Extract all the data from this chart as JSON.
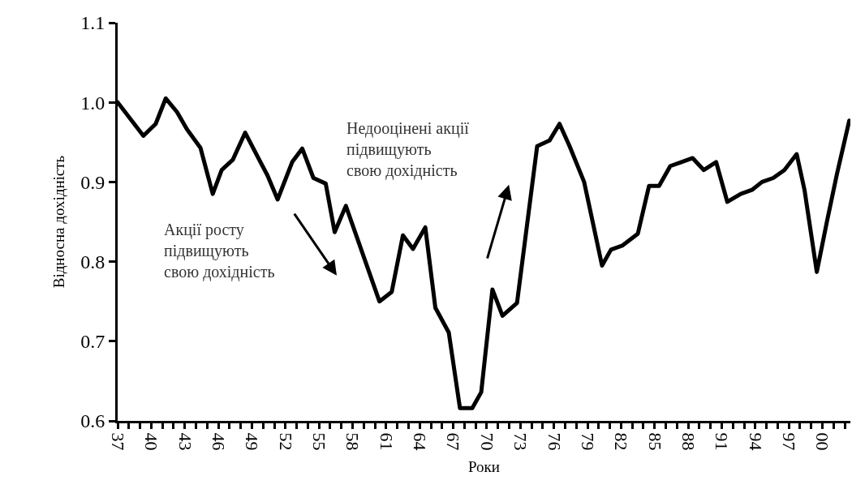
{
  "chart_data": {
    "type": "line",
    "xlabel": "Роки",
    "ylabel": "Відносна дохідність",
    "x": [
      1937.0,
      1939.3,
      1940.4,
      1941.3,
      1942.3,
      1943.2,
      1944.4,
      1945.5,
      1946.3,
      1947.3,
      1948.4,
      1949.5,
      1950.4,
      1951.3,
      1952.6,
      1953.5,
      1954.5,
      1955.6,
      1956.4,
      1957.4,
      1960.4,
      1961.5,
      1962.5,
      1963.4,
      1964.5,
      1965.4,
      1966.6,
      1967.6,
      1968.7,
      1969.5,
      1970.5,
      1971.4,
      1972.7,
      1974.5,
      1975.6,
      1976.5,
      1977.4,
      1978.7,
      1980.3,
      1981.1,
      1982.1,
      1983.5,
      1984.5,
      1985.4,
      1986.4,
      1987.4,
      1988.4,
      1989.4,
      1990.5,
      1991.5,
      1992.7,
      1993.7,
      1994.6,
      1995.6,
      1996.6,
      1997.7,
      1998.4,
      1999.5,
      2000.4,
      2001.3,
      2002.4
    ],
    "series": [
      {
        "color": "#000000",
        "values": [
          1.0,
          0.958,
          0.973,
          1.005,
          0.988,
          0.966,
          0.943,
          0.885,
          0.915,
          0.928,
          0.962,
          0.932,
          0.908,
          0.878,
          0.925,
          0.942,
          0.905,
          0.898,
          0.837,
          0.87,
          0.75,
          0.762,
          0.833,
          0.816,
          0.843,
          0.742,
          0.711,
          0.616,
          0.616,
          0.636,
          0.765,
          0.732,
          0.748,
          0.945,
          0.952,
          0.973,
          0.945,
          0.9,
          0.795,
          0.815,
          0.82,
          0.835,
          0.895,
          0.895,
          0.92,
          0.925,
          0.93,
          0.915,
          0.925,
          0.875,
          0.885,
          0.89,
          0.9,
          0.905,
          0.915,
          0.935,
          0.89,
          0.787,
          0.85,
          0.91,
          0.977
        ]
      }
    ],
    "xlim": [
      1937,
      2002.5
    ],
    "ylim": [
      0.6,
      1.1
    ],
    "xticks": [
      {
        "value": 1937,
        "label": "37"
      },
      {
        "value": 1938,
        "label": null
      },
      {
        "value": 1939,
        "label": null
      },
      {
        "value": 1940,
        "label": "40"
      },
      {
        "value": 1941,
        "label": null
      },
      {
        "value": 1942,
        "label": null
      },
      {
        "value": 1943,
        "label": "43"
      },
      {
        "value": 1944,
        "label": null
      },
      {
        "value": 1945,
        "label": null
      },
      {
        "value": 1946,
        "label": "46"
      },
      {
        "value": 1947,
        "label": null
      },
      {
        "value": 1948,
        "label": null
      },
      {
        "value": 1949,
        "label": "49"
      },
      {
        "value": 1950,
        "label": null
      },
      {
        "value": 1951,
        "label": null
      },
      {
        "value": 1952,
        "label": "52"
      },
      {
        "value": 1953,
        "label": null
      },
      {
        "value": 1954,
        "label": null
      },
      {
        "value": 1955,
        "label": "55"
      },
      {
        "value": 1956,
        "label": null
      },
      {
        "value": 1957,
        "label": null
      },
      {
        "value": 1958,
        "label": "58"
      },
      {
        "value": 1959,
        "label": null
      },
      {
        "value": 1960,
        "label": null
      },
      {
        "value": 1961,
        "label": "61"
      },
      {
        "value": 1962,
        "label": null
      },
      {
        "value": 1963,
        "label": null
      },
      {
        "value": 1964,
        "label": "64"
      },
      {
        "value": 1965,
        "label": null
      },
      {
        "value": 1966,
        "label": null
      },
      {
        "value": 1967,
        "label": "67"
      },
      {
        "value": 1968,
        "label": null
      },
      {
        "value": 1969,
        "label": null
      },
      {
        "value": 1970,
        "label": "70"
      },
      {
        "value": 1971,
        "label": null
      },
      {
        "value": 1972,
        "label": null
      },
      {
        "value": 1973,
        "label": "73"
      },
      {
        "value": 1974,
        "label": null
      },
      {
        "value": 1975,
        "label": null
      },
      {
        "value": 1976,
        "label": "76"
      },
      {
        "value": 1977,
        "label": null
      },
      {
        "value": 1978,
        "label": null
      },
      {
        "value": 1979,
        "label": "79"
      },
      {
        "value": 1980,
        "label": null
      },
      {
        "value": 1981,
        "label": null
      },
      {
        "value": 1982,
        "label": "82"
      },
      {
        "value": 1983,
        "label": null
      },
      {
        "value": 1984,
        "label": null
      },
      {
        "value": 1985,
        "label": "85"
      },
      {
        "value": 1986,
        "label": null
      },
      {
        "value": 1987,
        "label": null
      },
      {
        "value": 1988,
        "label": "88"
      },
      {
        "value": 1989,
        "label": null
      },
      {
        "value": 1990,
        "label": null
      },
      {
        "value": 1991,
        "label": "91"
      },
      {
        "value": 1992,
        "label": null
      },
      {
        "value": 1993,
        "label": null
      },
      {
        "value": 1994,
        "label": "94"
      },
      {
        "value": 1995,
        "label": null
      },
      {
        "value": 1996,
        "label": null
      },
      {
        "value": 1997,
        "label": "97"
      },
      {
        "value": 1998,
        "label": null
      },
      {
        "value": 1999,
        "label": null
      },
      {
        "value": 2000,
        "label": "00"
      },
      {
        "value": 2001,
        "label": null
      },
      {
        "value": 2002,
        "label": null
      }
    ],
    "yticks": [
      0.6,
      0.7,
      0.8,
      0.9,
      {
        "value": 1.0,
        "label": "1.0"
      },
      1.1
    ],
    "marker": "none",
    "line_style": "solid",
    "annotations": [
      "Акції росту\nпідвищують\nсвою дохідність",
      "Недооцінені акції\nпідвищують\nсвою дохідність"
    ]
  }
}
